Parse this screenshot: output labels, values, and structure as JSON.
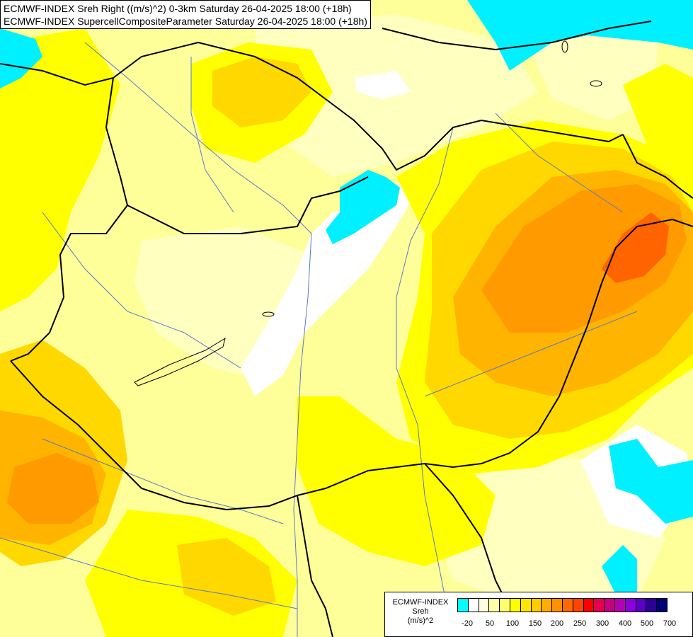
{
  "header": {
    "line1": "ECMWF-INDEX Sreh Right ((m/s)^2) 0-3km Saturday 26-04-2025 18:00 (+18h)",
    "line2": "ECMWF-INDEX SupercellCompositeParameter Saturday 26-04-2025 18:00 (+18h)"
  },
  "legend": {
    "title1": "ECMWF-INDEX",
    "title2": "Sreh",
    "title3": "(m/s)^2",
    "colors": [
      "#00ffff",
      "#ffffff",
      "#ffffe0",
      "#ffffa6",
      "#ffff70",
      "#ffff00",
      "#ffe600",
      "#ffcc00",
      "#ffad00",
      "#ff9000",
      "#ff6a00",
      "#ff4500",
      "#ff0000",
      "#e6004f",
      "#c8007e",
      "#b400b4",
      "#8c00dc",
      "#5a00c8",
      "#2d0096",
      "#000078"
    ],
    "ticks": [
      "-20",
      "50",
      "100",
      "150",
      "200",
      "250",
      "300",
      "400",
      "500",
      "700"
    ]
  },
  "colors": {
    "cyan": "#00f0ff",
    "white": "#ffffff",
    "pale": "#ffffc0",
    "light_yellow": "#ffff9a",
    "yellow": "#ffff00",
    "gold": "#ffd800",
    "orange_light": "#ffb400",
    "orange": "#ff9a00",
    "red_orange": "#ff6400",
    "border": "#000000",
    "river": "#5a78c8"
  }
}
